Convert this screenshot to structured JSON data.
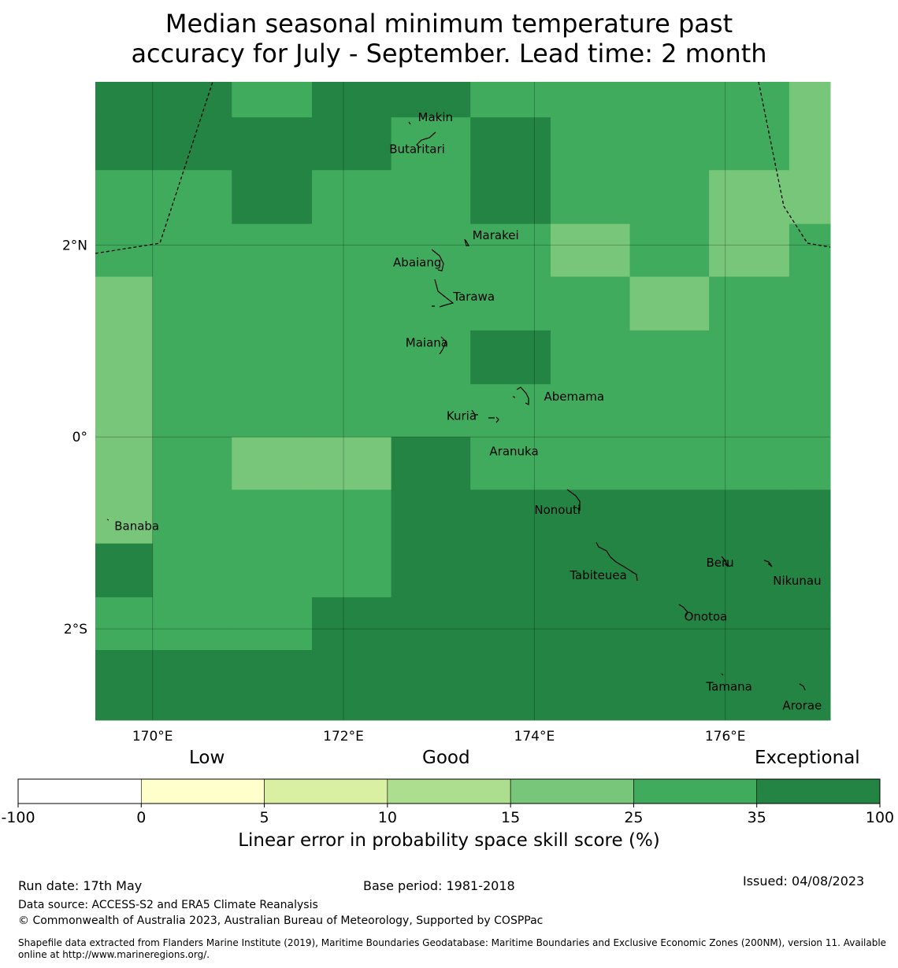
{
  "title": {
    "line1": "Median seasonal minimum temperature past",
    "line2": "accuracy for July - September. Lead time: 2 month"
  },
  "colors": {
    "darkest": "#238443",
    "dark": "#41ab5d",
    "medium": "#78c679",
    "light": "#addd8e",
    "lighter": "#d9f0a3",
    "lightest": "#ffffcc",
    "white": "#ffffff"
  },
  "map": {
    "lon_range": [
      169.4,
      177.1
    ],
    "lat_range": [
      -2.95,
      3.7
    ],
    "x_ticks": [
      {
        "lon": 170,
        "label": "170°E"
      },
      {
        "lon": 172,
        "label": "172°E"
      },
      {
        "lon": 174,
        "label": "174°E"
      },
      {
        "lon": 176,
        "label": "176°E"
      }
    ],
    "y_ticks": [
      {
        "lat": 2,
        "label": "2°N"
      },
      {
        "lat": 0,
        "label": "0°"
      },
      {
        "lat": -2,
        "label": "2°S"
      }
    ],
    "grid_lon_edges": [
      169.4,
      170.0,
      170.83,
      171.67,
      172.5,
      173.33,
      174.17,
      175.0,
      175.83,
      176.67,
      177.1
    ],
    "grid_lat_edges": [
      3.7,
      3.33,
      2.78,
      2.22,
      1.67,
      1.11,
      0.55,
      0.0,
      -0.55,
      -1.11,
      -1.67,
      -2.22,
      -2.95
    ],
    "grid_levels": [
      [
        4,
        4,
        3,
        4,
        4,
        3,
        3,
        3,
        3,
        2
      ],
      [
        4,
        4,
        4,
        4,
        3,
        4,
        3,
        3,
        3,
        2
      ],
      [
        3,
        3,
        4,
        3,
        3,
        4,
        3,
        3,
        2,
        2
      ],
      [
        3,
        3,
        3,
        3,
        3,
        3,
        2,
        3,
        2,
        3
      ],
      [
        2,
        3,
        3,
        3,
        3,
        3,
        3,
        2,
        3,
        3
      ],
      [
        2,
        3,
        3,
        3,
        3,
        4,
        3,
        3,
        3,
        3
      ],
      [
        2,
        3,
        3,
        3,
        3,
        3,
        3,
        3,
        3,
        3
      ],
      [
        2,
        3,
        2,
        2,
        4,
        3,
        3,
        3,
        3,
        3
      ],
      [
        2,
        3,
        3,
        3,
        4,
        4,
        4,
        4,
        4,
        4
      ],
      [
        4,
        3,
        3,
        3,
        4,
        4,
        4,
        4,
        4,
        4
      ],
      [
        3,
        3,
        3,
        4,
        4,
        4,
        4,
        4,
        4,
        4
      ],
      [
        4,
        4,
        4,
        4,
        4,
        4,
        4,
        4,
        4,
        4
      ]
    ],
    "places": [
      {
        "name": "Makin",
        "lon": 172.78,
        "lat": 3.33
      },
      {
        "name": "Butaritari",
        "lon": 172.48,
        "lat": 3.0
      },
      {
        "name": "Marakei",
        "lon": 173.35,
        "lat": 2.1
      },
      {
        "name": "Abaiang",
        "lon": 172.52,
        "lat": 1.82
      },
      {
        "name": "Tarawa",
        "lon": 173.15,
        "lat": 1.46
      },
      {
        "name": "Maiana",
        "lon": 172.65,
        "lat": 0.98
      },
      {
        "name": "Abemama",
        "lon": 174.1,
        "lat": 0.42
      },
      {
        "name": "Kuria",
        "lon": 173.08,
        "lat": 0.22
      },
      {
        "name": "Aranuka",
        "lon": 173.53,
        "lat": -0.15
      },
      {
        "name": "Banaba",
        "lon": 169.6,
        "lat": -0.93
      },
      {
        "name": "Nonouti",
        "lon": 174.0,
        "lat": -0.76
      },
      {
        "name": "Tabiteuea",
        "lon": 174.37,
        "lat": -1.44
      },
      {
        "name": "Beru",
        "lon": 175.8,
        "lat": -1.31
      },
      {
        "name": "Nikunau",
        "lon": 176.5,
        "lat": -1.5
      },
      {
        "name": "Onotoa",
        "lon": 175.57,
        "lat": -1.87
      },
      {
        "name": "Tamana",
        "lon": 175.8,
        "lat": -2.6
      },
      {
        "name": "Arorae",
        "lon": 176.6,
        "lat": -2.8
      }
    ]
  },
  "legend": {
    "categories": [
      "Low",
      "Good",
      "Exceptional"
    ],
    "tick_labels": [
      "-100",
      "0",
      "5",
      "10",
      "15",
      "25",
      "35",
      "100"
    ],
    "bins": [
      "white",
      "lightest",
      "lighter",
      "light",
      "medium",
      "dark",
      "darkest"
    ],
    "title": "Linear error in probability space skill score (%)"
  },
  "footer": {
    "run_date": "Run date: 17th May",
    "base_period": "Base period: 1981-2018",
    "issued": "Issued: 04/08/2023",
    "data_source": "Data source: ACCESS-S2 and ERA5 Climate Reanalysis",
    "copyright": "© Commonwealth of Australia 2023, Australian Bureau of Meteorology, Supported by COSPPac",
    "shapefile": "Shapefile data extracted from Flanders Marine Institute (2019), Maritime Boundaries Geodatabase: Maritime Boundaries and Exclusive Economic Zones (200NM), version 11. Available online at http://www.marineregions.org/."
  }
}
